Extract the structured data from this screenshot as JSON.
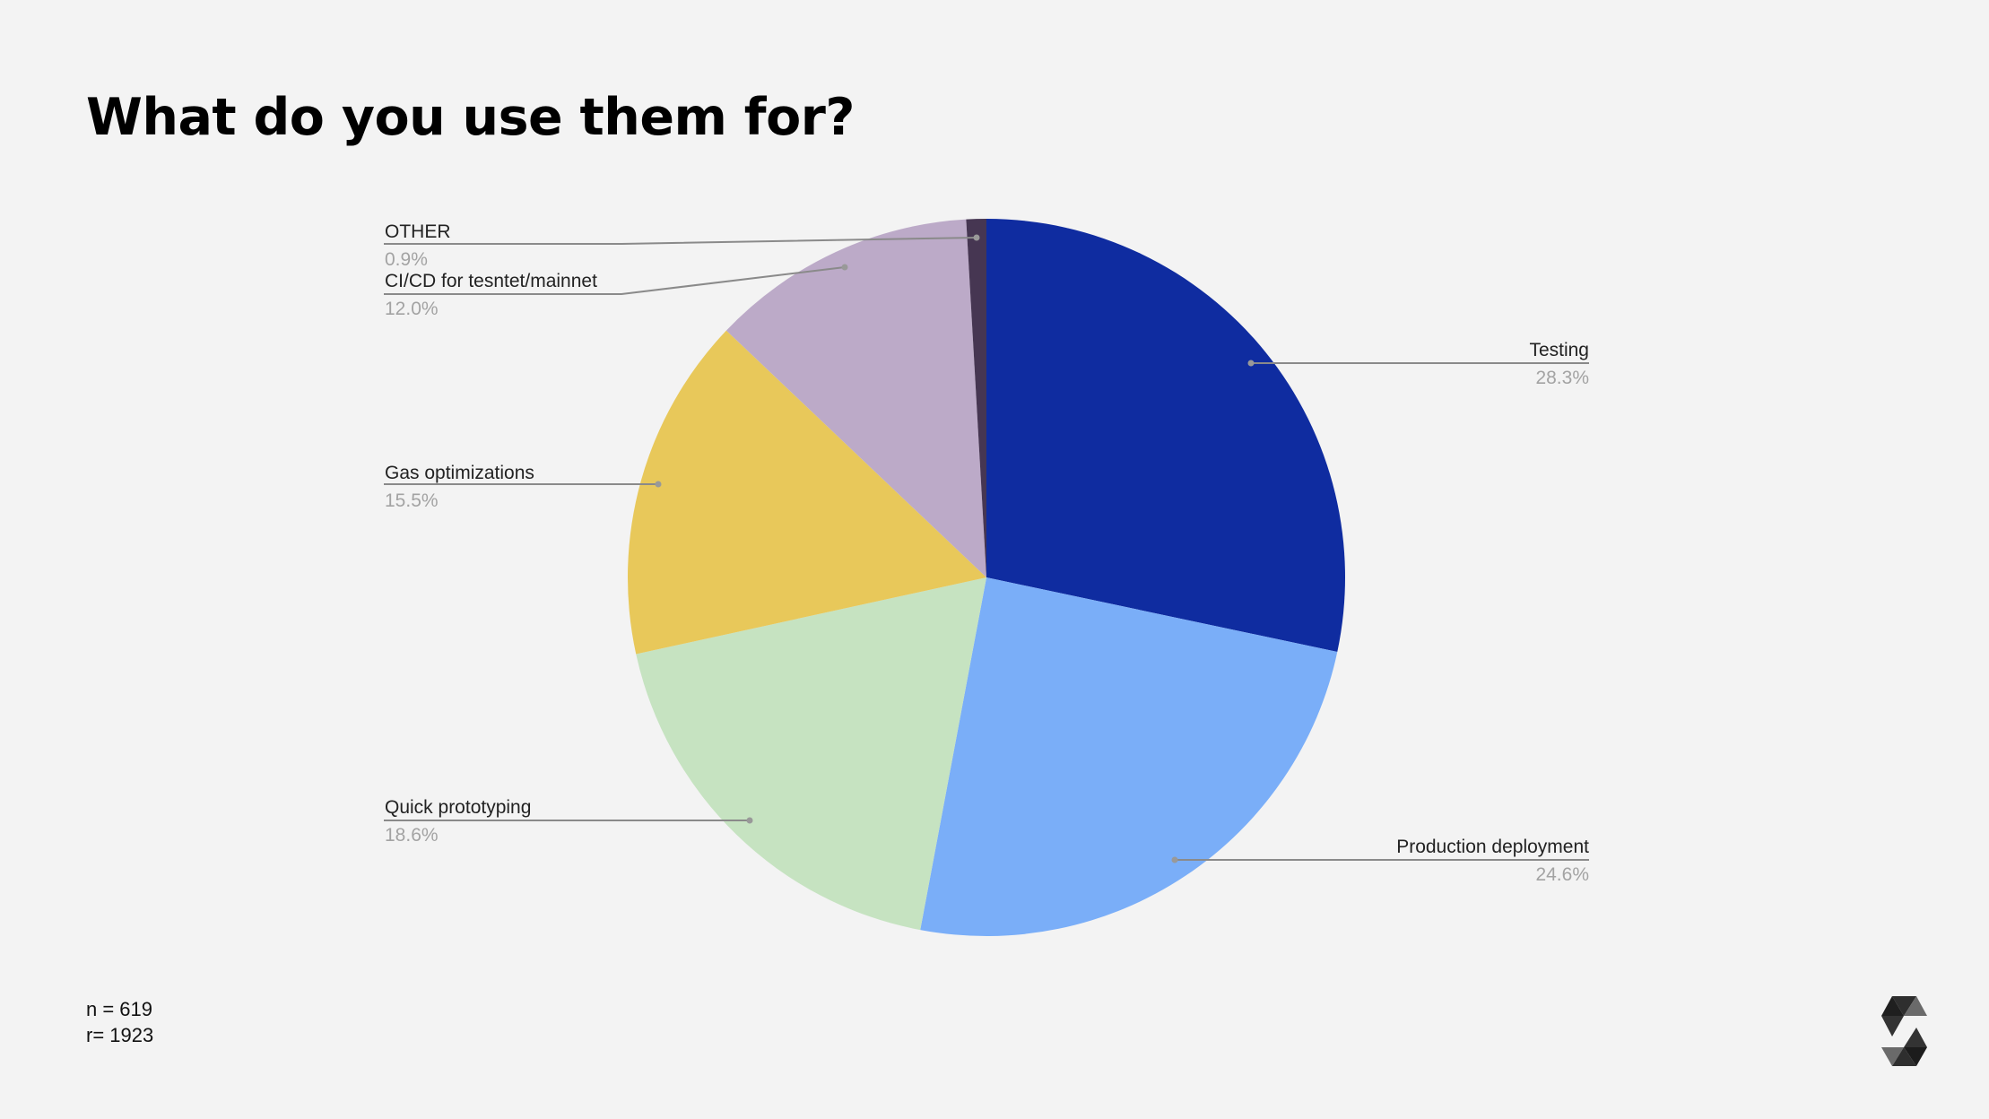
{
  "chart_data": {
    "type": "pie",
    "title": "What do you use them for?",
    "start": "12 o'clock, clockwise",
    "slices": [
      {
        "label": "Testing",
        "value": 28.3,
        "display": "28.3%",
        "color": "#0f2ca0"
      },
      {
        "label": "Production deployment",
        "value": 24.6,
        "display": "24.6%",
        "color": "#7aaef8"
      },
      {
        "label": "Quick prototyping",
        "value": 18.6,
        "display": "18.6%",
        "color": "#c6e3c1"
      },
      {
        "label": "Gas optimizations",
        "value": 15.5,
        "display": "15.5%",
        "color": "#e8c85a"
      },
      {
        "label": "CI/CD for tesntet/mainnet",
        "value": 12.0,
        "display": "12.0%",
        "color": "#bcaac8"
      },
      {
        "label": "OTHER",
        "value": 0.9,
        "display": "0.9%",
        "color": "#463652"
      }
    ],
    "legend": "leader-line labels"
  },
  "footer": {
    "n": "n = 619",
    "r": "r= 1923"
  },
  "logo": "solidity-logo"
}
